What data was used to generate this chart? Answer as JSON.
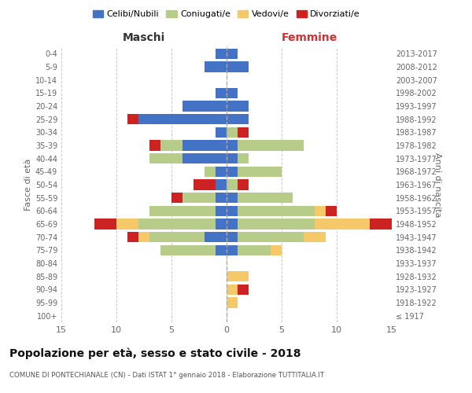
{
  "age_groups": [
    "100+",
    "95-99",
    "90-94",
    "85-89",
    "80-84",
    "75-79",
    "70-74",
    "65-69",
    "60-64",
    "55-59",
    "50-54",
    "45-49",
    "40-44",
    "35-39",
    "30-34",
    "25-29",
    "20-24",
    "15-19",
    "10-14",
    "5-9",
    "0-4"
  ],
  "birth_years": [
    "≤ 1917",
    "1918-1922",
    "1923-1927",
    "1928-1932",
    "1933-1937",
    "1938-1942",
    "1943-1947",
    "1948-1952",
    "1953-1957",
    "1958-1962",
    "1963-1967",
    "1968-1972",
    "1973-1977",
    "1978-1982",
    "1983-1987",
    "1988-1992",
    "1993-1997",
    "1998-2002",
    "2003-2007",
    "2008-2012",
    "2013-2017"
  ],
  "maschi": {
    "celibi": [
      0,
      0,
      0,
      0,
      0,
      1,
      2,
      1,
      1,
      1,
      1,
      1,
      4,
      4,
      1,
      8,
      4,
      1,
      0,
      2,
      1
    ],
    "coniugati": [
      0,
      0,
      0,
      0,
      0,
      5,
      5,
      7,
      6,
      3,
      0,
      1,
      3,
      2,
      0,
      0,
      0,
      0,
      0,
      0,
      0
    ],
    "vedovi": [
      0,
      0,
      0,
      0,
      0,
      0,
      1,
      2,
      0,
      0,
      0,
      0,
      0,
      0,
      0,
      0,
      0,
      0,
      0,
      0,
      0
    ],
    "divorziati": [
      0,
      0,
      0,
      0,
      0,
      0,
      1,
      2,
      0,
      1,
      2,
      0,
      0,
      1,
      0,
      1,
      0,
      0,
      0,
      0,
      0
    ]
  },
  "femmine": {
    "nubili": [
      0,
      0,
      0,
      0,
      0,
      1,
      1,
      1,
      1,
      1,
      0,
      1,
      1,
      1,
      0,
      2,
      2,
      1,
      0,
      2,
      1
    ],
    "coniugate": [
      0,
      0,
      0,
      0,
      0,
      3,
      6,
      7,
      7,
      5,
      1,
      4,
      1,
      6,
      1,
      0,
      0,
      0,
      0,
      0,
      0
    ],
    "vedove": [
      0,
      1,
      1,
      2,
      0,
      1,
      2,
      5,
      1,
      0,
      0,
      0,
      0,
      0,
      0,
      0,
      0,
      0,
      0,
      0,
      0
    ],
    "divorziate": [
      0,
      0,
      1,
      0,
      0,
      0,
      0,
      2,
      1,
      0,
      1,
      0,
      0,
      0,
      1,
      0,
      0,
      0,
      0,
      0,
      0
    ]
  },
  "colors": {
    "celibi_nubili": "#4472c4",
    "coniugati": "#b8cc8a",
    "vedovi": "#f5c96a",
    "divorziati": "#cc2222"
  },
  "xlim": 15,
  "title": "Popolazione per età, sesso e stato civile - 2018",
  "subtitle": "COMUNE DI PONTECHIANALE (CN) - Dati ISTAT 1° gennaio 2018 - Elaborazione TUTTITALIA.IT",
  "legend_labels": [
    "Celibi/Nubili",
    "Coniugati/e",
    "Vedovi/e",
    "Divorziati/e"
  ],
  "xlabel_left": "Maschi",
  "xlabel_right": "Femmine",
  "ylabel_left": "Fasce di età",
  "ylabel_right": "Anni di nascita",
  "bg_color": "#ffffff",
  "grid_color": "#cccccc"
}
